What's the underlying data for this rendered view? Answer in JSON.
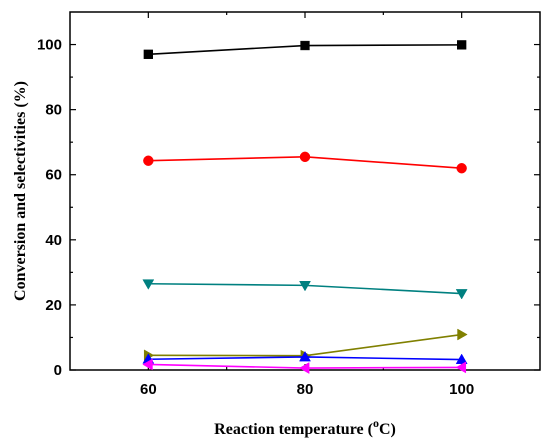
{
  "chart_data": {
    "type": "line",
    "title": "",
    "xlabel": "Reaction temperature",
    "xlabel_unit_open": " (",
    "xlabel_unit_sup": "o",
    "xlabel_unit_rest": "C)",
    "ylabel": "Conversion and selectivities (%)",
    "x": [
      60,
      80,
      100
    ],
    "xlim": [
      50,
      110
    ],
    "ylim": [
      0,
      110
    ],
    "xticks": [
      "60",
      "80",
      "100"
    ],
    "yticks": [
      "0",
      "20",
      "40",
      "60",
      "80",
      "100"
    ],
    "grid": false,
    "series": [
      {
        "color": "#000000",
        "marker": "square",
        "values": [
          97.0,
          99.7,
          99.9
        ]
      },
      {
        "color": "#ff0000",
        "marker": "circle",
        "values": [
          64.3,
          65.5,
          62.0
        ]
      },
      {
        "color": "#008080",
        "marker": "triangle-down",
        "values": [
          26.5,
          26.0,
          23.5
        ]
      },
      {
        "color": "#808000",
        "marker": "triangle-right",
        "values": [
          4.5,
          4.4,
          10.9
        ]
      },
      {
        "color": "#0000ff",
        "marker": "triangle-up",
        "values": [
          3.3,
          4.0,
          3.2
        ]
      },
      {
        "color": "#ff00ff",
        "marker": "triangle-left",
        "values": [
          1.7,
          0.6,
          0.8
        ]
      }
    ]
  }
}
